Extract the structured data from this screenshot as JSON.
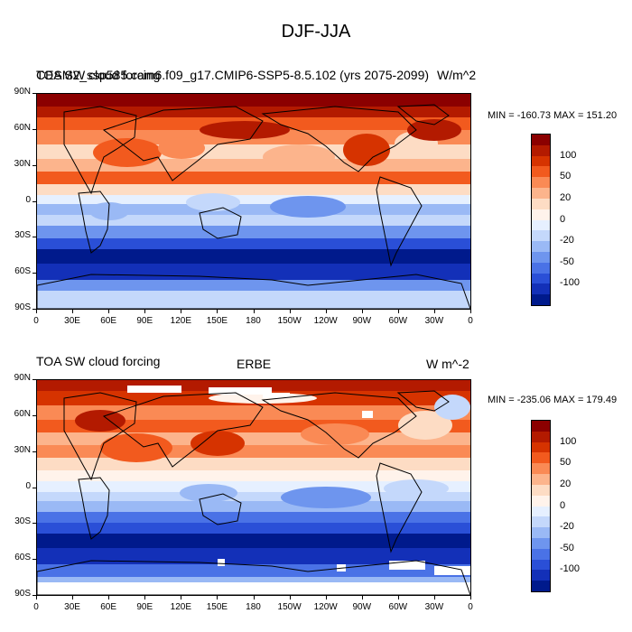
{
  "page_title": "DJF-JJA",
  "panels": [
    {
      "title_left": "TOA SW cloud forcing",
      "title_overlap": "CESM2_ssp585.cam6.f09_g17.CMIP6-SSP5-8.5.102 (yrs 2075-2099)",
      "title_center": "",
      "units": "W/m^2",
      "minmax": "MIN = -160.73 MAX = 151.20"
    },
    {
      "title_left": "TOA SW cloud forcing",
      "title_overlap": "",
      "title_center": "ERBE",
      "units": "W m^-2",
      "minmax": "MIN = -235.06 MAX = 179.49"
    }
  ],
  "lat_labels": [
    "90N",
    "60N",
    "30N",
    "0",
    "30S",
    "60S",
    "90S"
  ],
  "lon_labels": [
    "0",
    "30E",
    "60E",
    "90E",
    "120E",
    "150E",
    "180",
    "150W",
    "120W",
    "90W",
    "60W",
    "30W",
    "0"
  ],
  "colorbar": {
    "labels": [
      "100",
      "50",
      "20",
      "0",
      "-20",
      "-50",
      "-100"
    ],
    "colors": [
      "#8b0000",
      "#b31a00",
      "#d63300",
      "#f25a1e",
      "#fa8a55",
      "#fcb48c",
      "#fddcc4",
      "#fff3eb",
      "#e6f0ff",
      "#c4d8fb",
      "#9ab9f5",
      "#6e95ee",
      "#4a72e6",
      "#2a4fd7",
      "#1330b8",
      "#001a8c"
    ]
  }
}
